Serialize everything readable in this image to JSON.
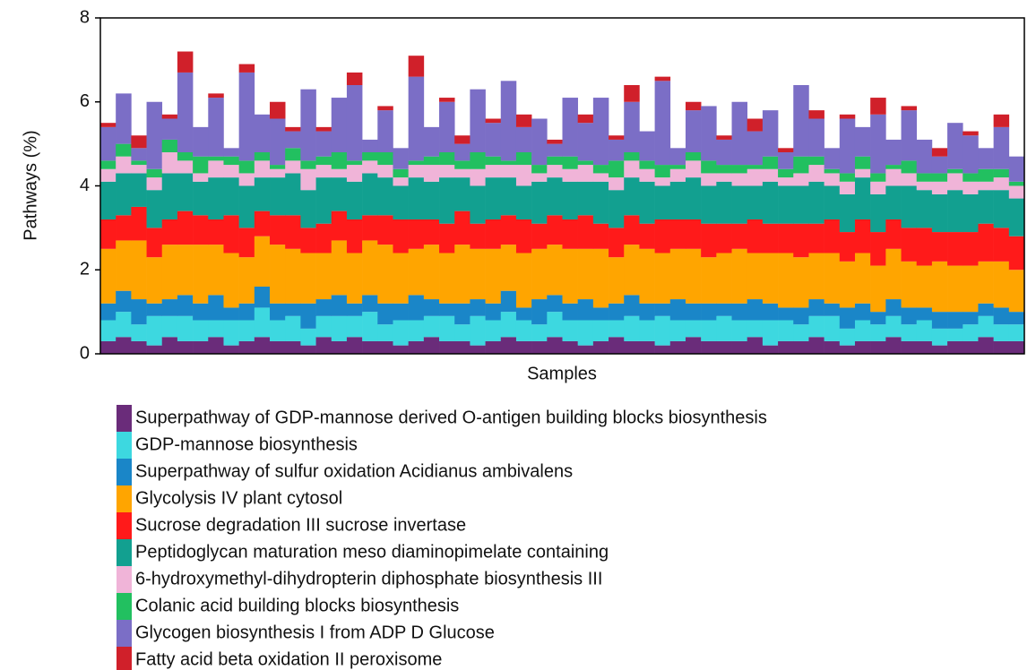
{
  "chart_data": {
    "type": "stacked_bar",
    "xlabel": "Samples",
    "ylabel": "Pathways (%)",
    "ylim": [
      0,
      8
    ],
    "yticks": [
      0,
      2,
      4,
      6,
      8
    ],
    "categories": [
      null,
      null,
      null,
      null,
      null,
      null,
      null,
      null,
      null,
      null,
      null,
      null,
      null,
      null,
      null,
      null,
      null,
      null,
      null,
      null,
      null,
      null,
      null,
      null,
      null,
      null,
      null,
      null,
      null,
      null,
      null,
      null,
      null,
      null,
      null,
      null,
      null,
      null,
      null,
      null,
      null,
      null,
      null,
      null,
      null,
      null,
      null,
      null,
      null,
      null,
      null,
      null,
      null,
      null,
      null,
      null,
      null,
      null,
      null,
      null
    ],
    "series": [
      {
        "name": "Superpathway of GDP-mannose derived O-antigen building blocks biosynthesis",
        "color": "#6a2c7a",
        "values": [
          0.3,
          0.4,
          0.3,
          0.2,
          0.4,
          0.3,
          0.3,
          0.4,
          0.2,
          0.3,
          0.4,
          0.3,
          0.3,
          0.2,
          0.4,
          0.3,
          0.4,
          0.3,
          0.3,
          0.2,
          0.3,
          0.4,
          0.3,
          0.3,
          0.2,
          0.3,
          0.4,
          0.3,
          0.3,
          0.4,
          0.3,
          0.2,
          0.3,
          0.4,
          0.3,
          0.3,
          0.2,
          0.3,
          0.4,
          0.3,
          0.3,
          0.3,
          0.4,
          0.2,
          0.3,
          0.3,
          0.4,
          0.3,
          0.2,
          0.3,
          0.3,
          0.4,
          0.3,
          0.3,
          0.2,
          0.3,
          0.3,
          0.4,
          0.3,
          0.3
        ]
      },
      {
        "name": "GDP-mannose biosynthesis",
        "color": "#3dd8e0",
        "values": [
          0.5,
          0.6,
          0.4,
          0.7,
          0.5,
          0.6,
          0.5,
          0.4,
          0.6,
          0.5,
          0.7,
          0.5,
          0.6,
          0.4,
          0.5,
          0.6,
          0.5,
          0.7,
          0.4,
          0.6,
          0.5,
          0.5,
          0.6,
          0.4,
          0.7,
          0.5,
          0.6,
          0.5,
          0.4,
          0.6,
          0.5,
          0.6,
          0.5,
          0.4,
          0.6,
          0.5,
          0.7,
          0.5,
          0.4,
          0.5,
          0.6,
          0.5,
          0.4,
          0.6,
          0.5,
          0.4,
          0.5,
          0.6,
          0.4,
          0.5,
          0.4,
          0.5,
          0.4,
          0.5,
          0.4,
          0.3,
          0.4,
          0.5,
          0.4,
          0.4
        ]
      },
      {
        "name": "Superpathway of sulfur oxidation Acidianus ambivalens",
        "color": "#1a86c8",
        "values": [
          0.4,
          0.5,
          0.6,
          0.3,
          0.4,
          0.5,
          0.4,
          0.6,
          0.3,
          0.4,
          0.5,
          0.4,
          0.3,
          0.6,
          0.4,
          0.5,
          0.3,
          0.4,
          0.5,
          0.4,
          0.6,
          0.4,
          0.3,
          0.5,
          0.4,
          0.4,
          0.5,
          0.3,
          0.6,
          0.4,
          0.4,
          0.5,
          0.3,
          0.4,
          0.5,
          0.4,
          0.3,
          0.5,
          0.4,
          0.4,
          0.3,
          0.4,
          0.5,
          0.4,
          0.3,
          0.4,
          0.4,
          0.3,
          0.5,
          0.4,
          0.3,
          0.4,
          0.4,
          0.3,
          0.4,
          0.4,
          0.3,
          0.3,
          0.4,
          0.3
        ]
      },
      {
        "name": "Glycolysis IV plant cytosol",
        "color": "#ffa500",
        "values": [
          1.3,
          1.2,
          1.4,
          1.1,
          1.3,
          1.2,
          1.4,
          1.2,
          1.3,
          1.1,
          1.2,
          1.4,
          1.3,
          1.2,
          1.1,
          1.3,
          1.2,
          1.3,
          1.4,
          1.2,
          1.1,
          1.3,
          1.2,
          1.4,
          1.2,
          1.3,
          1.1,
          1.3,
          1.2,
          1.2,
          1.3,
          1.2,
          1.4,
          1.1,
          1.2,
          1.3,
          1.2,
          1.2,
          1.3,
          1.1,
          1.2,
          1.3,
          1.1,
          1.2,
          1.3,
          1.2,
          1.1,
          1.2,
          1.1,
          1.2,
          1.1,
          1.2,
          1.1,
          1.0,
          1.2,
          1.1,
          1.1,
          1.0,
          1.1,
          1.0
        ]
      },
      {
        "name": "Sucrose degradation III sucrose invertase",
        "color": "#ff1a1a",
        "values": [
          0.7,
          0.6,
          0.8,
          0.7,
          0.6,
          0.8,
          0.7,
          0.6,
          0.9,
          0.7,
          0.6,
          0.7,
          0.8,
          0.6,
          0.7,
          0.7,
          0.8,
          0.6,
          0.7,
          0.8,
          0.7,
          0.6,
          0.7,
          0.8,
          0.6,
          0.7,
          0.7,
          0.8,
          0.6,
          0.7,
          0.7,
          0.8,
          0.6,
          0.7,
          0.7,
          0.6,
          0.8,
          0.7,
          0.7,
          0.8,
          0.7,
          0.6,
          0.8,
          0.7,
          0.7,
          0.8,
          0.7,
          0.8,
          0.7,
          0.8,
          0.8,
          0.7,
          0.8,
          0.9,
          0.7,
          0.8,
          0.8,
          0.9,
          0.8,
          0.8
        ]
      },
      {
        "name": "Peptidoglycan maturation meso diaminopimelate containing",
        "color": "#12a090",
        "values": [
          0.9,
          1.0,
          0.8,
          0.9,
          1.1,
          0.9,
          0.8,
          1.0,
          0.9,
          1.0,
          0.8,
          0.9,
          1.0,
          0.9,
          1.1,
          0.8,
          0.9,
          1.0,
          0.9,
          0.8,
          1.0,
          0.9,
          1.1,
          0.8,
          0.9,
          1.0,
          0.9,
          0.8,
          1.0,
          0.9,
          0.9,
          0.8,
          1.0,
          0.9,
          0.9,
          1.0,
          0.8,
          0.9,
          1.0,
          0.9,
          1.0,
          0.9,
          0.8,
          1.0,
          0.9,
          0.9,
          1.0,
          0.8,
          0.9,
          1.0,
          0.9,
          0.8,
          1.0,
          0.9,
          0.9,
          1.0,
          0.9,
          0.8,
          0.9,
          0.9
        ]
      },
      {
        "name": "6-hydroxymethyl-dihydropterin diphosphate biosynthesis III",
        "color": "#f0b4d8",
        "values": [
          0.3,
          0.4,
          0.2,
          0.3,
          0.5,
          0.3,
          0.2,
          0.4,
          0.3,
          0.3,
          0.4,
          0.2,
          0.3,
          0.5,
          0.3,
          0.2,
          0.4,
          0.3,
          0.3,
          0.2,
          0.3,
          0.4,
          0.3,
          0.2,
          0.4,
          0.3,
          0.3,
          0.5,
          0.2,
          0.3,
          0.3,
          0.4,
          0.2,
          0.3,
          0.4,
          0.3,
          0.2,
          0.3,
          0.4,
          0.3,
          0.2,
          0.3,
          0.4,
          0.3,
          0.2,
          0.3,
          0.4,
          0.3,
          0.3,
          0.2,
          0.3,
          0.4,
          0.3,
          0.2,
          0.3,
          0.4,
          0.3,
          0.2,
          0.3,
          0.3
        ]
      },
      {
        "name": "Colanic acid building blocks biosynthesis",
        "color": "#22c060",
        "values": [
          0.2,
          0.3,
          0.1,
          0.2,
          0.3,
          0.2,
          0.4,
          0.1,
          0.2,
          0.3,
          0.2,
          0.1,
          0.3,
          0.2,
          0.2,
          0.4,
          0.1,
          0.2,
          0.3,
          0.2,
          0.1,
          0.2,
          0.3,
          0.2,
          0.4,
          0.2,
          0.1,
          0.3,
          0.2,
          0.2,
          0.3,
          0.1,
          0.2,
          0.4,
          0.2,
          0.2,
          0.3,
          0.1,
          0.2,
          0.3,
          0.2,
          0.2,
          0.1,
          0.3,
          0.2,
          0.4,
          0.2,
          0.1,
          0.2,
          0.3,
          0.2,
          0.1,
          0.3,
          0.2,
          0.2,
          0.1,
          0.2,
          0.3,
          0.2,
          0.1
        ]
      },
      {
        "name": "Glycogen biosynthesis I from ADP D Glucose",
        "color": "#7b6ec6",
        "values": [
          0.8,
          1.2,
          0.3,
          1.6,
          0.5,
          1.9,
          0.7,
          1.4,
          0.2,
          2.1,
          0.9,
          1.1,
          0.4,
          1.7,
          0.6,
          1.3,
          1.8,
          0.3,
          1.0,
          0.5,
          2.0,
          0.7,
          1.2,
          0.4,
          1.5,
          0.8,
          1.9,
          0.6,
          1.1,
          0.3,
          1.4,
          0.9,
          1.6,
          0.5,
          1.2,
          0.7,
          2.0,
          0.4,
          1.0,
          1.3,
          0.6,
          1.5,
          0.8,
          1.1,
          0.4,
          1.7,
          0.9,
          0.5,
          1.3,
          0.7,
          1.4,
          0.6,
          1.2,
          0.8,
          0.4,
          1.1,
          0.9,
          0.5,
          1.0,
          0.6
        ]
      },
      {
        "name": "Fatty acid beta oxidation II peroxisome",
        "color": "#d0202a",
        "values": [
          0.1,
          0.0,
          0.3,
          0.0,
          0.1,
          0.5,
          0.0,
          0.1,
          0.0,
          0.2,
          0.0,
          0.4,
          0.1,
          0.0,
          0.1,
          0.0,
          0.3,
          0.0,
          0.1,
          0.0,
          0.5,
          0.0,
          0.1,
          0.2,
          0.0,
          0.1,
          0.0,
          0.3,
          0.0,
          0.1,
          0.0,
          0.2,
          0.0,
          0.1,
          0.4,
          0.0,
          0.1,
          0.0,
          0.2,
          0.0,
          0.1,
          0.0,
          0.3,
          0.0,
          0.1,
          0.0,
          0.2,
          0.0,
          0.1,
          0.0,
          0.4,
          0.0,
          0.1,
          0.0,
          0.2,
          0.0,
          0.1,
          0.0,
          0.3,
          0.0
        ]
      }
    ]
  }
}
